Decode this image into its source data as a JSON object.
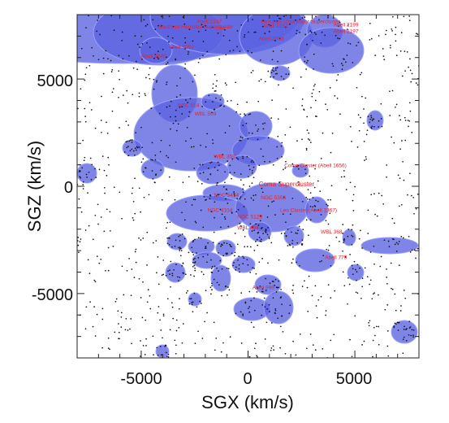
{
  "chart_data": {
    "type": "scatter",
    "title": "",
    "xlabel": "SGX (km/s)",
    "ylabel": "SGZ (km/s)",
    "xlim": [
      -8000,
      8000
    ],
    "ylim": [
      -8000,
      8000
    ],
    "x_ticks": [
      -5000,
      0,
      5000
    ],
    "y_ticks": [
      5000,
      0,
      -5000
    ],
    "x_tick_labels": [
      "-5000",
      "0",
      "5000"
    ],
    "y_tick_labels": [
      "5000",
      "0",
      "-5000"
    ],
    "grid": false,
    "density_color": "#5b63e0",
    "point_color": "#111111",
    "annotation_color": "#e8202a",
    "annotations": [
      {
        "text": "Abell 2147",
        "x": -2400,
        "y": 7600
      },
      {
        "text": "Hercules-Ursa Major Supercluster",
        "x": 600,
        "y": 7600
      },
      {
        "text": "Southern Hercules Supercluster",
        "x": -4200,
        "y": 7350
      },
      {
        "text": "Leo",
        "x": -1500,
        "y": 7300
      },
      {
        "text": "Abell 2152",
        "x": 700,
        "y": 7400
      },
      {
        "text": "Abell 2199",
        "x": 4000,
        "y": 7450
      },
      {
        "text": "Abell 2197",
        "x": 4000,
        "y": 7150
      },
      {
        "text": "Abell 2063",
        "x": 500,
        "y": 6800
      },
      {
        "text": "Abell 2052",
        "x": -3700,
        "y": 6400
      },
      {
        "text": "Abell 2040",
        "x": -5000,
        "y": 6000
      },
      {
        "text": "WBL 514",
        "x": -3300,
        "y": 3700
      },
      {
        "text": "WBL 509",
        "x": -2500,
        "y": 3300
      },
      {
        "text": "WBL 359",
        "x": -1600,
        "y": 1300
      },
      {
        "text": "Coma Cluster (Abell 1656)",
        "x": 1700,
        "y": 900
      },
      {
        "text": "Coma Supercluster",
        "x": 500,
        "y": 0
      },
      {
        "text": "NGC 5474",
        "x": -1600,
        "y": -500
      },
      {
        "text": "NGC 5353",
        "x": 600,
        "y": -600
      },
      {
        "text": "Leo Cluster (Abell 1367)",
        "x": 1500,
        "y": -1200
      },
      {
        "text": "NGC 4104",
        "x": -1900,
        "y": -1200
      },
      {
        "text": "NGC 5129",
        "x": -500,
        "y": -1500
      },
      {
        "text": "WBL 404",
        "x": -500,
        "y": -2000
      },
      {
        "text": "WBL 368",
        "x": 3400,
        "y": -2200
      },
      {
        "text": "Abell 779",
        "x": 3600,
        "y": -3400
      },
      {
        "text": "Abell 999",
        "x": 200,
        "y": -4800
      }
    ]
  }
}
